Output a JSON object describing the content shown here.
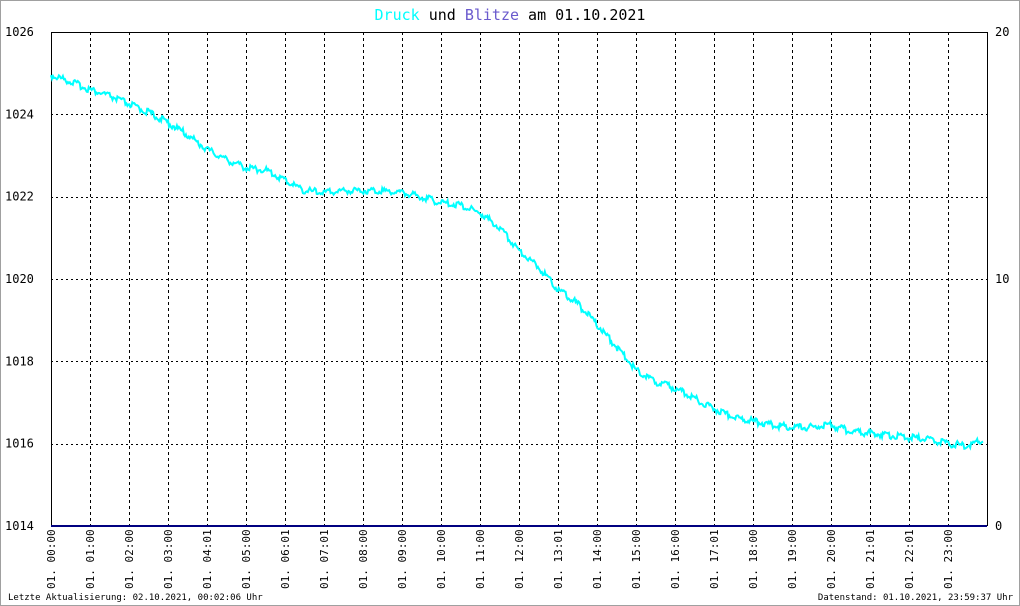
{
  "title": {
    "part1": "Druck",
    "part2": " und ",
    "part3": "Blitze",
    "part4": " am 01.10.2021"
  },
  "colors": {
    "pressure": "#00ffff",
    "lightning": "#6a5acd",
    "baseline": "#000080",
    "text": "#000000"
  },
  "footer": {
    "left": "Letzte Aktualisierung: 02.10.2021, 00:02:06 Uhr",
    "right": "Datenstand: 01.10.2021, 23:59:37 Uhr"
  },
  "chart_data": {
    "type": "line",
    "y_left": {
      "range": [
        1014,
        1026
      ],
      "ticks": [
        "1014",
        "1016",
        "1018",
        "1020",
        "1022",
        "1024",
        "1026"
      ]
    },
    "y_right": {
      "range": [
        0,
        20
      ],
      "ticks": [
        "0",
        "10",
        "20"
      ]
    },
    "x_range_hours": [
      0,
      24
    ],
    "x_ticks": [
      "01. 00:00",
      "01. 01:00",
      "01. 02:00",
      "01. 03:00",
      "01. 04:01",
      "01. 05:00",
      "01. 06:01",
      "01. 07:01",
      "01. 08:00",
      "01. 09:00",
      "01. 10:00",
      "01. 11:00",
      "01. 12:00",
      "01. 13:01",
      "01. 14:00",
      "01. 15:00",
      "01. 16:00",
      "01. 17:01",
      "01. 18:00",
      "01. 19:00",
      "01. 20:00",
      "01. 21:01",
      "01. 22:01",
      "01. 23:00"
    ],
    "grid": true,
    "series": [
      {
        "name": "Druck",
        "axis": "left",
        "x": [
          0,
          0.5,
          1,
          1.5,
          2,
          2.5,
          3,
          3.5,
          4,
          4.5,
          5,
          5.5,
          6,
          6.5,
          7,
          7.5,
          8,
          8.5,
          9,
          9.5,
          10,
          10.5,
          11,
          11.5,
          12,
          12.5,
          13,
          13.5,
          14,
          14.5,
          15,
          15.5,
          16,
          16.5,
          17,
          17.5,
          18,
          18.5,
          19,
          19.5,
          20,
          20.5,
          21,
          21.5,
          22,
          22.5,
          23,
          23.5,
          23.9
        ],
        "y": [
          1024.95,
          1024.8,
          1024.6,
          1024.45,
          1024.25,
          1024.05,
          1023.8,
          1023.5,
          1023.15,
          1022.9,
          1022.7,
          1022.65,
          1022.4,
          1022.15,
          1022.1,
          1022.15,
          1022.15,
          1022.15,
          1022.1,
          1022.0,
          1021.85,
          1021.8,
          1021.6,
          1021.25,
          1020.7,
          1020.3,
          1019.75,
          1019.4,
          1018.9,
          1018.35,
          1017.8,
          1017.5,
          1017.35,
          1017.1,
          1016.85,
          1016.65,
          1016.55,
          1016.45,
          1016.4,
          1016.4,
          1016.45,
          1016.3,
          1016.25,
          1016.2,
          1016.15,
          1016.1,
          1016.0,
          1015.95,
          1016.1
        ]
      },
      {
        "name": "Blitze",
        "axis": "right",
        "x": [
          0,
          24
        ],
        "y": [
          0,
          0
        ]
      }
    ]
  }
}
